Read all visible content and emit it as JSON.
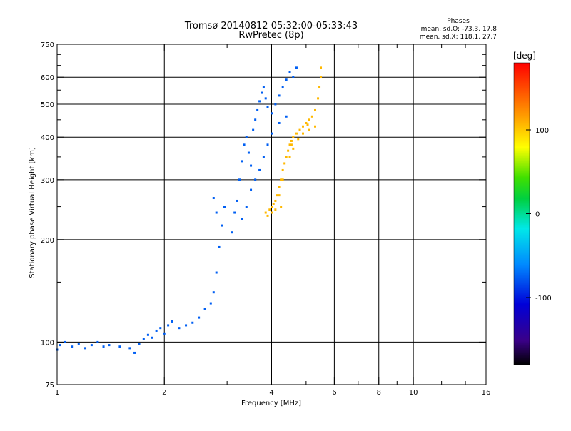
{
  "chart_data": {
    "type": "scatter",
    "title": "Tromsø 20140812 05:32:00-05:33:43",
    "subtitle": "RwPretec (8p)",
    "stats": {
      "heading": "Phases",
      "line_o": "mean, sd,O: -73.3, 17.8",
      "line_x": "mean, sd,X: 118.1, 27.7"
    },
    "xlabel": "Frequency [MHz]",
    "ylabel": "Stationary phase Virtual Height [km]",
    "x_scale": "log",
    "y_scale": "log",
    "xlim": [
      1,
      16
    ],
    "ylim": [
      75,
      750
    ],
    "x_ticks": [
      1,
      2,
      4,
      6,
      8,
      10,
      16
    ],
    "x_tick_labels": [
      "1",
      "2",
      "4",
      "6",
      "8",
      "10",
      "16"
    ],
    "x_minor_ticks": [
      3,
      5,
      7,
      9,
      12,
      14
    ],
    "y_ticks": [
      75,
      100,
      200,
      300,
      400,
      500,
      600,
      750
    ],
    "y_tick_labels": [
      "75",
      "100",
      "200",
      "300",
      "400",
      "500",
      "600",
      "750"
    ],
    "y_minor_ticks": [
      150,
      250,
      350,
      450,
      550,
      650,
      700
    ],
    "grid_x": [
      2,
      4,
      6,
      8,
      10
    ],
    "grid_y": [
      100,
      200,
      300,
      400,
      500,
      600
    ],
    "colorbar": {
      "label": "[deg]",
      "range": [
        -180,
        180
      ],
      "ticks": [
        100,
        0,
        -100
      ],
      "tick_labels": [
        "100",
        "0",
        "-100"
      ]
    },
    "series": [
      {
        "name": "O",
        "color_phase": -75,
        "points": [
          [
            1.0,
            95
          ],
          [
            1.02,
            98
          ],
          [
            1.05,
            100
          ],
          [
            1.1,
            97
          ],
          [
            1.15,
            99
          ],
          [
            1.2,
            96
          ],
          [
            1.25,
            98
          ],
          [
            1.3,
            100
          ],
          [
            1.35,
            97
          ],
          [
            1.4,
            98
          ],
          [
            1.5,
            97
          ],
          [
            1.6,
            96
          ],
          [
            1.65,
            93
          ],
          [
            1.7,
            99
          ],
          [
            1.75,
            102
          ],
          [
            1.8,
            105
          ],
          [
            1.85,
            103
          ],
          [
            1.9,
            108
          ],
          [
            1.95,
            110
          ],
          [
            2.0,
            106
          ],
          [
            2.05,
            112
          ],
          [
            2.1,
            115
          ],
          [
            2.2,
            110
          ],
          [
            2.3,
            112
          ],
          [
            2.4,
            114
          ],
          [
            2.5,
            118
          ],
          [
            2.6,
            125
          ],
          [
            2.7,
            130
          ],
          [
            2.75,
            140
          ],
          [
            2.8,
            160
          ],
          [
            2.85,
            190
          ],
          [
            2.9,
            220
          ],
          [
            2.95,
            250
          ],
          [
            2.8,
            240
          ],
          [
            2.75,
            265
          ],
          [
            3.1,
            210
          ],
          [
            3.15,
            240
          ],
          [
            3.2,
            260
          ],
          [
            3.25,
            300
          ],
          [
            3.3,
            340
          ],
          [
            3.35,
            380
          ],
          [
            3.4,
            400
          ],
          [
            3.45,
            360
          ],
          [
            3.5,
            330
          ],
          [
            3.55,
            420
          ],
          [
            3.6,
            450
          ],
          [
            3.65,
            480
          ],
          [
            3.7,
            510
          ],
          [
            3.75,
            540
          ],
          [
            3.8,
            560
          ],
          [
            3.85,
            520
          ],
          [
            3.9,
            490
          ],
          [
            4.0,
            470
          ],
          [
            4.1,
            500
          ],
          [
            4.2,
            530
          ],
          [
            4.3,
            560
          ],
          [
            4.4,
            590
          ],
          [
            4.5,
            620
          ],
          [
            4.6,
            600
          ],
          [
            4.7,
            640
          ],
          [
            3.3,
            230
          ],
          [
            3.4,
            250
          ],
          [
            3.5,
            280
          ],
          [
            3.6,
            300
          ],
          [
            3.7,
            320
          ],
          [
            3.8,
            350
          ],
          [
            3.9,
            380
          ],
          [
            4.0,
            410
          ],
          [
            4.2,
            440
          ],
          [
            4.4,
            460
          ]
        ]
      },
      {
        "name": "X",
        "color_phase": 120,
        "points": [
          [
            3.85,
            240
          ],
          [
            3.9,
            235
          ],
          [
            3.95,
            245
          ],
          [
            4.0,
            250
          ],
          [
            4.05,
            255
          ],
          [
            4.1,
            260
          ],
          [
            4.15,
            270
          ],
          [
            4.2,
            285
          ],
          [
            4.25,
            300
          ],
          [
            4.3,
            320
          ],
          [
            4.35,
            335
          ],
          [
            4.4,
            350
          ],
          [
            4.45,
            365
          ],
          [
            4.5,
            380
          ],
          [
            4.55,
            390
          ],
          [
            4.6,
            400
          ],
          [
            4.7,
            410
          ],
          [
            4.8,
            420
          ],
          [
            4.9,
            430
          ],
          [
            5.0,
            440
          ],
          [
            5.1,
            450
          ],
          [
            5.2,
            460
          ],
          [
            5.3,
            480
          ],
          [
            5.4,
            520
          ],
          [
            5.45,
            560
          ],
          [
            5.5,
            600
          ],
          [
            5.5,
            640
          ],
          [
            5.3,
            430
          ],
          [
            5.1,
            420
          ],
          [
            4.9,
            410
          ],
          [
            4.6,
            370
          ],
          [
            4.5,
            350
          ],
          [
            4.3,
            300
          ],
          [
            4.2,
            270
          ],
          [
            4.25,
            250
          ],
          [
            4.1,
            245
          ],
          [
            4.0,
            240
          ],
          [
            4.55,
            380
          ],
          [
            4.75,
            395
          ],
          [
            5.05,
            435
          ]
        ]
      }
    ]
  }
}
